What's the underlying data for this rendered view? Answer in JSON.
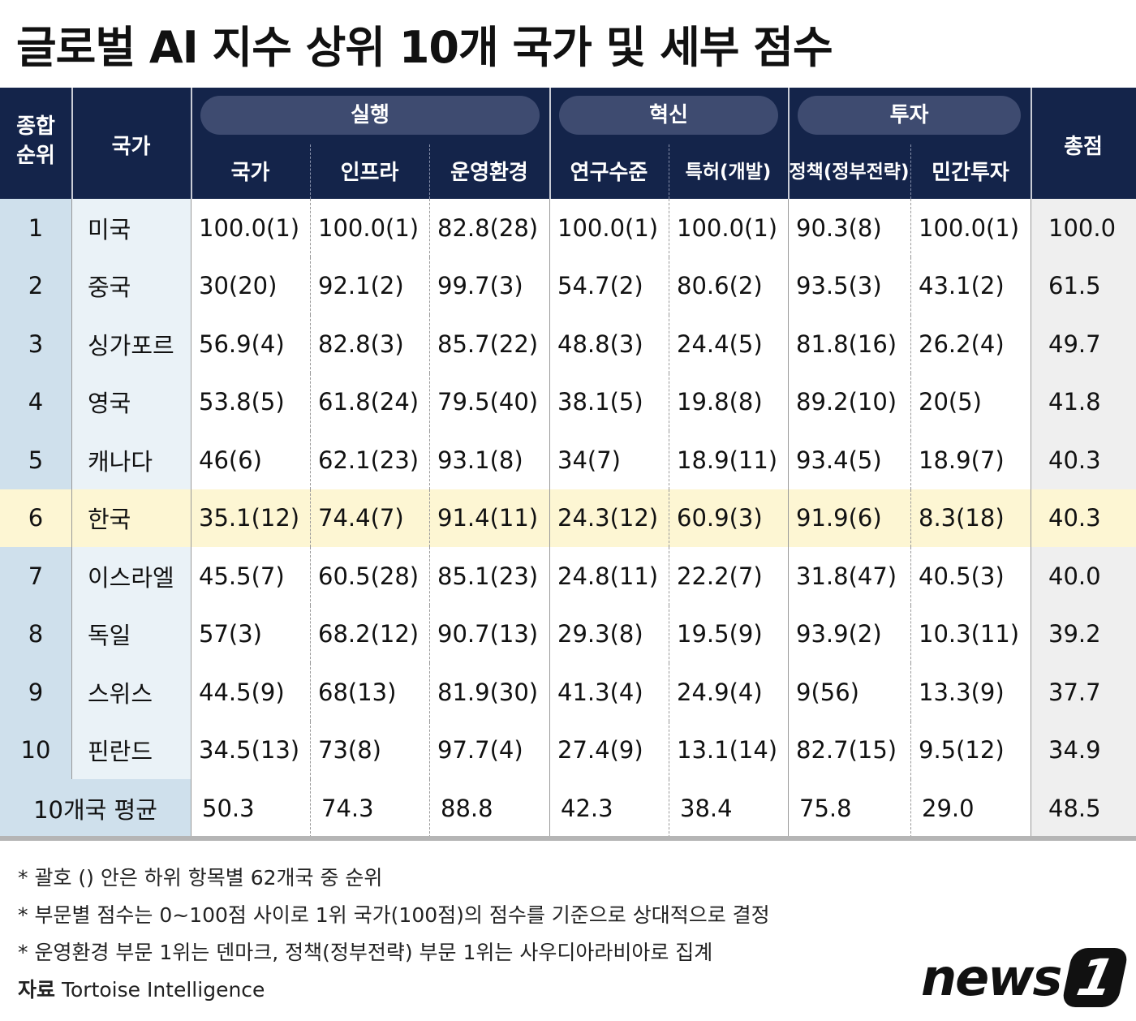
{
  "title": "글로벌 AI 지수 상위 10개 국가 및 세부 점수",
  "chart_data": {
    "type": "table",
    "title": "글로벌 AI 지수 상위 10개 국가 및 세부 점수",
    "header": {
      "rank": "종합 순위",
      "rank_l1": "종합",
      "rank_l2": "순위",
      "country": "국가",
      "total": "총점",
      "groups": [
        {
          "label": "실행",
          "columns": [
            "국가",
            "인프라",
            "운영환경"
          ]
        },
        {
          "label": "혁신",
          "columns": [
            "연구수준",
            "특허(개발)"
          ]
        },
        {
          "label": "투자",
          "columns": [
            "정책(정부전략)",
            "민간투자"
          ]
        }
      ]
    },
    "rows": [
      {
        "rank": "1",
        "country": "미국",
        "values": [
          "100.0(1)",
          "100.0(1)",
          "82.8(28)",
          "100.0(1)",
          "100.0(1)",
          "90.3(8)",
          "100.0(1)"
        ],
        "total": "100.0"
      },
      {
        "rank": "2",
        "country": "중국",
        "values": [
          "30(20)",
          "92.1(2)",
          "99.7(3)",
          "54.7(2)",
          "80.6(2)",
          "93.5(3)",
          "43.1(2)"
        ],
        "total": "61.5"
      },
      {
        "rank": "3",
        "country": "싱가포르",
        "values": [
          "56.9(4)",
          "82.8(3)",
          "85.7(22)",
          "48.8(3)",
          "24.4(5)",
          "81.8(16)",
          "26.2(4)"
        ],
        "total": "49.7"
      },
      {
        "rank": "4",
        "country": "영국",
        "values": [
          "53.8(5)",
          "61.8(24)",
          "79.5(40)",
          "38.1(5)",
          "19.8(8)",
          "89.2(10)",
          "20(5)"
        ],
        "total": "41.8"
      },
      {
        "rank": "5",
        "country": "캐나다",
        "values": [
          "46(6)",
          "62.1(23)",
          "93.1(8)",
          "34(7)",
          "18.9(11)",
          "93.4(5)",
          "18.9(7)"
        ],
        "total": "40.3"
      },
      {
        "rank": "6",
        "country": "한국",
        "values": [
          "35.1(12)",
          "74.4(7)",
          "91.4(11)",
          "24.3(12)",
          "60.9(3)",
          "91.9(6)",
          "8.3(18)"
        ],
        "total": "40.3",
        "highlight": true
      },
      {
        "rank": "7",
        "country": "이스라엘",
        "values": [
          "45.5(7)",
          "60.5(28)",
          "85.1(23)",
          "24.8(11)",
          "22.2(7)",
          "31.8(47)",
          "40.5(3)"
        ],
        "total": "40.0"
      },
      {
        "rank": "8",
        "country": "독일",
        "values": [
          "57(3)",
          "68.2(12)",
          "90.7(13)",
          "29.3(8)",
          "19.5(9)",
          "93.9(2)",
          "10.3(11)"
        ],
        "total": "39.2"
      },
      {
        "rank": "9",
        "country": "스위스",
        "values": [
          "44.5(9)",
          "68(13)",
          "81.9(30)",
          "41.3(4)",
          "24.9(4)",
          "9(56)",
          "13.3(9)"
        ],
        "total": "37.7"
      },
      {
        "rank": "10",
        "country": "핀란드",
        "values": [
          "34.5(13)",
          "73(8)",
          "97.7(4)",
          "27.4(9)",
          "13.1(14)",
          "82.7(15)",
          "9.5(12)"
        ],
        "total": "34.9"
      }
    ],
    "average": {
      "label": "10개국 평균",
      "values": [
        "50.3",
        "74.3",
        "88.8",
        "42.3",
        "38.4",
        "75.8",
        "29.0"
      ],
      "total": "48.5"
    }
  },
  "notes": [
    "* 괄호 () 안은 하위 항목별 62개국 중 순위",
    "* 부문별 점수는 0~100점 사이로 1위 국가(100점)의 점수를 기준으로 상대적으로 결정",
    "* 운영환경 부문 1위는 덴마크, 정책(정부전략) 부문 1위는 사우디아라비아로 집계"
  ],
  "source": {
    "label": "자료",
    "text": "Tortoise Intelligence"
  },
  "logo": {
    "text": "news",
    "num": "1"
  },
  "colors": {
    "header": "#14244a",
    "pill": "#3e4b70",
    "rank_col": "#cfe0ec",
    "country_col": "#eaf2f7",
    "total_col": "#efefef",
    "highlight": "#fdf6d3"
  }
}
